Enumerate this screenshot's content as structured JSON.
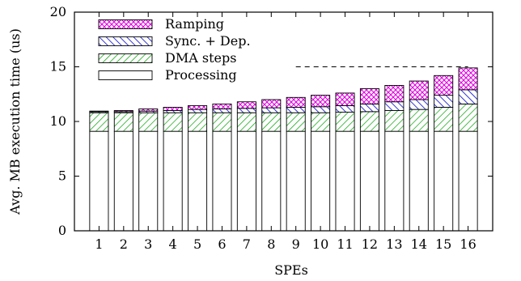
{
  "chart_data": {
    "type": "bar",
    "stacked": true,
    "xlabel": "SPEs",
    "ylabel": "Avg. MB execution time (us)",
    "ylim": [
      0,
      20
    ],
    "yticks": [
      0,
      5,
      10,
      15,
      20
    ],
    "categories": [
      "1",
      "2",
      "3",
      "4",
      "5",
      "6",
      "7",
      "8",
      "9",
      "10",
      "11",
      "12",
      "13",
      "14",
      "15",
      "16"
    ],
    "series": [
      {
        "name": "Processing",
        "pattern": "plain",
        "color": "#000000",
        "values": [
          9.1,
          9.1,
          9.1,
          9.1,
          9.1,
          9.1,
          9.1,
          9.1,
          9.1,
          9.1,
          9.1,
          9.1,
          9.1,
          9.1,
          9.1,
          9.1
        ]
      },
      {
        "name": "DMA steps",
        "pattern": "diag-green",
        "color": "#00a000",
        "values": [
          1.7,
          1.7,
          1.7,
          1.7,
          1.7,
          1.7,
          1.7,
          1.7,
          1.7,
          1.7,
          1.75,
          1.8,
          1.9,
          2.0,
          2.2,
          2.5
        ]
      },
      {
        "name": "Sync. + Dep.",
        "pattern": "diag-blue",
        "color": "#0000cc",
        "values": [
          0.1,
          0.1,
          0.15,
          0.2,
          0.3,
          0.35,
          0.4,
          0.45,
          0.5,
          0.55,
          0.6,
          0.7,
          0.8,
          0.9,
          1.1,
          1.3
        ]
      },
      {
        "name": "Ramping",
        "pattern": "cross-magenta",
        "color": "#e000e0",
        "values": [
          0.05,
          0.1,
          0.2,
          0.3,
          0.35,
          0.45,
          0.6,
          0.75,
          0.9,
          1.05,
          1.15,
          1.4,
          1.5,
          1.7,
          1.8,
          2.0
        ]
      }
    ],
    "reference_line": {
      "y": 15,
      "x_from": "9",
      "x_to": "16",
      "style": "dashed"
    },
    "legend_order": [
      "Ramping",
      "Sync. + Dep.",
      "DMA steps",
      "Processing"
    ],
    "legend_position": "top-left"
  }
}
